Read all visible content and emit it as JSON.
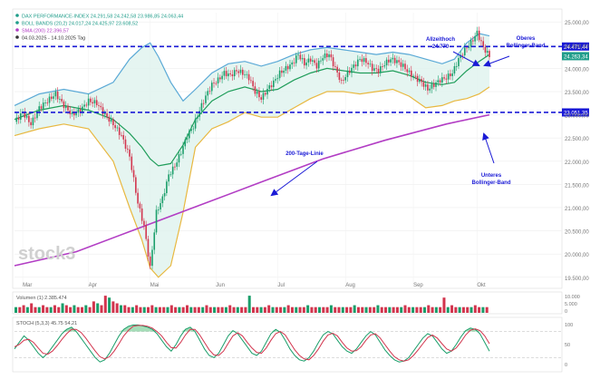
{
  "chart_data": {
    "type": "line",
    "legend": {
      "lines": [
        {
          "text": "DAX PERFORMANCE-INDEX  24.291,58  24.242,58  23.986,85  24.063,44",
          "color": "#1f9d8a"
        },
        {
          "text": "BOLL BANDS (20,2)  24.017,24  24.425,97  23.608,52",
          "color": "#1f9d8a"
        },
        {
          "text": "SMA (200)  22.396,57",
          "color": "#b23dc4"
        },
        {
          "text": "04.03.2025 - 14.10.2025  Tag",
          "color": "#333333"
        }
      ]
    },
    "watermark": "stock3",
    "months": [
      "Mar",
      "Apr",
      "Mai",
      "Jun",
      "Jul",
      "Aug",
      "Sep",
      "Okt"
    ],
    "y_ticks": [
      "25.000,00",
      "24.500,00",
      "24.000,00",
      "23.500,00",
      "23.000,00",
      "22.500,00",
      "22.000,00",
      "21.500,00",
      "21.000,00",
      "20.500,00",
      "20.000,00",
      "19.500,00"
    ],
    "ylim": [
      19300,
      25200
    ],
    "levels": [
      {
        "value": 24471.44,
        "label": "24.471,44",
        "style": "dashed",
        "color": "#1a1ad6"
      },
      {
        "value": 23051.35,
        "label": "23.051,35",
        "style": "dashed",
        "color": "#1a1ad6"
      }
    ],
    "last_price": {
      "value": 24263.34,
      "label": "24.263,34"
    },
    "annotations": [
      {
        "id": "allzeithoch",
        "lines": [
          "Allzeithoch",
          "24.770"
        ]
      },
      {
        "id": "oberes-band",
        "lines": [
          "Oberes",
          "Bollinger-Band"
        ]
      },
      {
        "id": "sma-linie",
        "lines": [
          "200-Tage-Linie"
        ]
      },
      {
        "id": "unteres-band",
        "lines": [
          "Unteres",
          "Bollinger-Band"
        ]
      }
    ],
    "price_path": [
      [
        0,
        22850
      ],
      [
        4,
        23050
      ],
      [
        8,
        22800
      ],
      [
        12,
        23150
      ],
      [
        16,
        23300
      ],
      [
        20,
        23450
      ],
      [
        24,
        23200
      ],
      [
        28,
        23000
      ],
      [
        32,
        23100
      ],
      [
        36,
        23300
      ],
      [
        40,
        23250
      ],
      [
        44,
        23000
      ],
      [
        48,
        22800
      ],
      [
        52,
        22550
      ],
      [
        56,
        22100
      ],
      [
        60,
        21100
      ],
      [
        63,
        20600
      ],
      [
        66,
        19700
      ],
      [
        69,
        20900
      ],
      [
        72,
        21200
      ],
      [
        75,
        21700
      ],
      [
        78,
        21900
      ],
      [
        81,
        22200
      ],
      [
        84,
        22550
      ],
      [
        87,
        22750
      ],
      [
        90,
        23100
      ],
      [
        93,
        23400
      ],
      [
        96,
        23650
      ],
      [
        99,
        23750
      ],
      [
        102,
        23900
      ],
      [
        105,
        23850
      ],
      [
        108,
        23950
      ],
      [
        111,
        23900
      ],
      [
        114,
        23800
      ],
      [
        117,
        23500
      ],
      [
        120,
        23350
      ],
      [
        123,
        23550
      ],
      [
        126,
        23700
      ],
      [
        129,
        23900
      ],
      [
        132,
        24000
      ],
      [
        135,
        24100
      ],
      [
        138,
        24300
      ],
      [
        141,
        24100
      ],
      [
        144,
        24200
      ],
      [
        147,
        24050
      ],
      [
        150,
        24250
      ],
      [
        153,
        24300
      ],
      [
        156,
        24000
      ],
      [
        159,
        23700
      ],
      [
        162,
        23900
      ],
      [
        165,
        24050
      ],
      [
        168,
        24200
      ],
      [
        171,
        24150
      ],
      [
        174,
        24000
      ],
      [
        177,
        23950
      ],
      [
        180,
        24100
      ],
      [
        183,
        24200
      ],
      [
        186,
        24150
      ],
      [
        189,
        24050
      ],
      [
        192,
        23900
      ],
      [
        195,
        23800
      ],
      [
        198,
        23700
      ],
      [
        201,
        23550
      ],
      [
        204,
        23650
      ],
      [
        207,
        23750
      ],
      [
        210,
        23800
      ],
      [
        213,
        23900
      ],
      [
        216,
        24200
      ],
      [
        219,
        24400
      ],
      [
        222,
        24550
      ],
      [
        225,
        24770
      ],
      [
        228,
        24450
      ],
      [
        231,
        24263
      ]
    ],
    "upper_band": [
      [
        0,
        23200
      ],
      [
        12,
        23450
      ],
      [
        24,
        23550
      ],
      [
        36,
        23450
      ],
      [
        48,
        23700
      ],
      [
        56,
        24200
      ],
      [
        62,
        24450
      ],
      [
        66,
        24550
      ],
      [
        70,
        24250
      ],
      [
        76,
        23700
      ],
      [
        82,
        23300
      ],
      [
        88,
        23550
      ],
      [
        96,
        23900
      ],
      [
        104,
        24100
      ],
      [
        112,
        24150
      ],
      [
        120,
        24050
      ],
      [
        128,
        24150
      ],
      [
        136,
        24300
      ],
      [
        144,
        24400
      ],
      [
        152,
        24450
      ],
      [
        160,
        24400
      ],
      [
        168,
        24350
      ],
      [
        176,
        24300
      ],
      [
        184,
        24350
      ],
      [
        192,
        24300
      ],
      [
        200,
        24200
      ],
      [
        208,
        24100
      ],
      [
        214,
        24200
      ],
      [
        220,
        24550
      ],
      [
        226,
        24750
      ],
      [
        231,
        24700
      ]
    ],
    "middle_band": [
      [
        0,
        22900
      ],
      [
        12,
        23100
      ],
      [
        24,
        23200
      ],
      [
        36,
        23100
      ],
      [
        48,
        22900
      ],
      [
        56,
        22600
      ],
      [
        62,
        22300
      ],
      [
        66,
        22050
      ],
      [
        70,
        21900
      ],
      [
        76,
        21950
      ],
      [
        82,
        22350
      ],
      [
        88,
        22900
      ],
      [
        96,
        23300
      ],
      [
        104,
        23500
      ],
      [
        112,
        23600
      ],
      [
        120,
        23500
      ],
      [
        128,
        23550
      ],
      [
        136,
        23750
      ],
      [
        144,
        23900
      ],
      [
        152,
        24000
      ],
      [
        160,
        23950
      ],
      [
        168,
        23900
      ],
      [
        176,
        23900
      ],
      [
        184,
        23950
      ],
      [
        192,
        23850
      ],
      [
        200,
        23700
      ],
      [
        208,
        23650
      ],
      [
        214,
        23700
      ],
      [
        220,
        23950
      ],
      [
        226,
        24150
      ],
      [
        231,
        24300
      ]
    ],
    "lower_band": [
      [
        0,
        22550
      ],
      [
        12,
        22700
      ],
      [
        24,
        22800
      ],
      [
        36,
        22700
      ],
      [
        48,
        22000
      ],
      [
        56,
        21000
      ],
      [
        62,
        20300
      ],
      [
        66,
        19700
      ],
      [
        70,
        19500
      ],
      [
        76,
        19750
      ],
      [
        82,
        20900
      ],
      [
        88,
        22300
      ],
      [
        96,
        22700
      ],
      [
        104,
        22850
      ],
      [
        112,
        23050
      ],
      [
        120,
        22950
      ],
      [
        128,
        22950
      ],
      [
        136,
        23150
      ],
      [
        144,
        23350
      ],
      [
        152,
        23500
      ],
      [
        160,
        23500
      ],
      [
        168,
        23450
      ],
      [
        176,
        23500
      ],
      [
        184,
        23550
      ],
      [
        192,
        23400
      ],
      [
        200,
        23150
      ],
      [
        208,
        23200
      ],
      [
        214,
        23300
      ],
      [
        220,
        23350
      ],
      [
        226,
        23450
      ],
      [
        231,
        23600
      ]
    ],
    "sma200": [
      [
        0,
        19750
      ],
      [
        30,
        20050
      ],
      [
        60,
        20550
      ],
      [
        90,
        21050
      ],
      [
        120,
        21550
      ],
      [
        150,
        22050
      ],
      [
        180,
        22450
      ],
      [
        210,
        22800
      ],
      [
        231,
        23000
      ]
    ],
    "volume": {
      "label": "Volumen (1) 2.385.474",
      "ticks": [
        "10.000",
        "5.000",
        "0"
      ],
      "bars": [
        3,
        3,
        4,
        3,
        5,
        3,
        3,
        4,
        3,
        3,
        4,
        3,
        5,
        4,
        3,
        4,
        3,
        3,
        4,
        3,
        6,
        5,
        4,
        9,
        8,
        6,
        5,
        4,
        4,
        3,
        3,
        4,
        3,
        3,
        3,
        4,
        3,
        3,
        3,
        3,
        4,
        3,
        3,
        3,
        4,
        3,
        3,
        3,
        3,
        4,
        3,
        3,
        3,
        3,
        3,
        4,
        3,
        3,
        3,
        3,
        9,
        3,
        3,
        3,
        3,
        4,
        3,
        3,
        3,
        3,
        4,
        3,
        3,
        3,
        3,
        4,
        3,
        3,
        3,
        3,
        3,
        4,
        3,
        3,
        3,
        3,
        3,
        4,
        3,
        3,
        3,
        3,
        3,
        4,
        3,
        3,
        3,
        3,
        3,
        3,
        4,
        3,
        3,
        3,
        3,
        3,
        4,
        3,
        3,
        3,
        8,
        3,
        4,
        3,
        3,
        3,
        3,
        3,
        4,
        3,
        3,
        3
      ],
      "max": 10
    },
    "stochastic": {
      "label": "STOCH (5,3,3)  45.75  54.21",
      "ticks": [
        "100",
        "50",
        "0"
      ],
      "k": [
        40,
        55,
        70,
        60,
        45,
        30,
        20,
        30,
        45,
        60,
        75,
        85,
        90,
        80,
        65,
        50,
        35,
        20,
        10,
        15,
        30,
        50,
        70,
        85,
        92,
        95,
        95,
        93,
        90,
        85,
        75,
        60,
        45,
        35,
        50,
        70,
        85,
        90,
        80,
        60,
        40,
        25,
        20,
        30,
        50,
        70,
        82,
        75,
        60,
        45,
        30,
        25,
        35,
        55,
        75,
        85,
        78,
        60,
        40,
        25,
        15,
        12,
        20,
        35,
        55,
        72,
        80,
        75,
        60,
        45,
        35,
        30,
        40,
        55,
        70,
        80,
        72,
        55,
        38,
        25,
        15,
        10,
        12,
        20,
        35,
        50,
        65,
        75,
        70,
        55,
        40,
        30,
        35,
        50,
        68,
        82,
        88,
        85,
        75,
        55,
        35
      ],
      "d": [
        45,
        50,
        60,
        62,
        55,
        42,
        30,
        28,
        35,
        48,
        62,
        75,
        85,
        85,
        78,
        65,
        50,
        35,
        22,
        17,
        22,
        35,
        52,
        70,
        83,
        92,
        94,
        94,
        92,
        88,
        80,
        70,
        55,
        43,
        42,
        55,
        72,
        85,
        85,
        72,
        55,
        38,
        26,
        25,
        35,
        53,
        70,
        77,
        70,
        55,
        42,
        32,
        30,
        42,
        60,
        75,
        80,
        72,
        55,
        38,
        25,
        17,
        15,
        25,
        40,
        58,
        72,
        76,
        70,
        55,
        42,
        35,
        36,
        45,
        60,
        72,
        75,
        65,
        50,
        35,
        22,
        15,
        12,
        15,
        25,
        38,
        52,
        66,
        72,
        65,
        52,
        40,
        35,
        42,
        56,
        72,
        83,
        86,
        82,
        70,
        52
      ]
    }
  }
}
